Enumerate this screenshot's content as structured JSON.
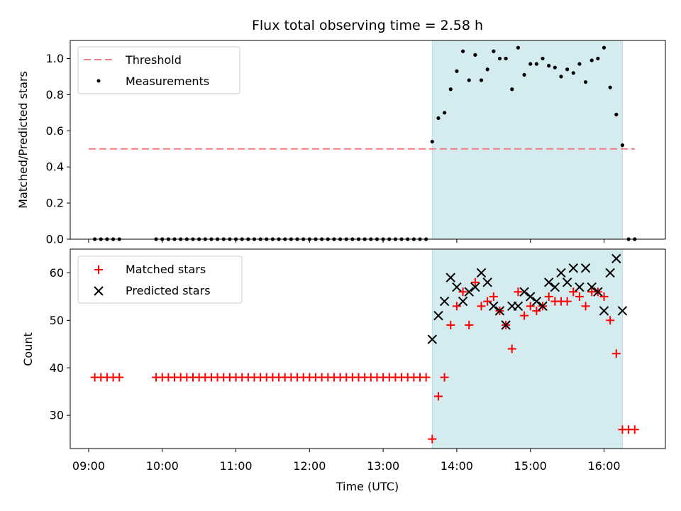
{
  "chart_data": [
    {
      "type": "scatter",
      "title": "Flux total observing time = 2.58 h",
      "xlabel": "",
      "ylabel": "Matched/Predicted stars",
      "ylim": [
        0,
        1.1
      ],
      "yticks": [
        "0.0",
        "0.2",
        "0.4",
        "0.6",
        "0.8",
        "1.0"
      ],
      "legend_position": "top-left",
      "highlight_span": {
        "from": "13:40",
        "to": "16:15",
        "color": "#d4ebf0"
      },
      "threshold": {
        "name": "Threshold",
        "value": 0.5,
        "from": "09:00",
        "to": "16:25",
        "color": "#f08080"
      },
      "series": [
        {
          "name": "Measurements",
          "color": "#000000",
          "marker": "dot",
          "points": [
            [
              "09:05",
              0
            ],
            [
              "09:10",
              0
            ],
            [
              "09:15",
              0
            ],
            [
              "09:20",
              0
            ],
            [
              "09:25",
              0
            ],
            [
              "09:55",
              0
            ],
            [
              "10:00",
              0
            ],
            [
              "10:05",
              0
            ],
            [
              "10:10",
              0
            ],
            [
              "10:15",
              0
            ],
            [
              "10:20",
              0
            ],
            [
              "10:25",
              0
            ],
            [
              "10:30",
              0
            ],
            [
              "10:35",
              0
            ],
            [
              "10:40",
              0
            ],
            [
              "10:45",
              0
            ],
            [
              "10:50",
              0
            ],
            [
              "10:55",
              0
            ],
            [
              "11:00",
              0
            ],
            [
              "11:05",
              0
            ],
            [
              "11:10",
              0
            ],
            [
              "11:15",
              0
            ],
            [
              "11:20",
              0
            ],
            [
              "11:25",
              0
            ],
            [
              "11:30",
              0
            ],
            [
              "11:35",
              0
            ],
            [
              "11:40",
              0
            ],
            [
              "11:45",
              0
            ],
            [
              "11:50",
              0
            ],
            [
              "11:55",
              0
            ],
            [
              "12:00",
              0
            ],
            [
              "12:05",
              0
            ],
            [
              "12:10",
              0
            ],
            [
              "12:15",
              0
            ],
            [
              "12:20",
              0
            ],
            [
              "12:25",
              0
            ],
            [
              "12:30",
              0
            ],
            [
              "12:35",
              0
            ],
            [
              "12:40",
              0
            ],
            [
              "12:45",
              0
            ],
            [
              "12:50",
              0
            ],
            [
              "12:55",
              0
            ],
            [
              "13:00",
              0
            ],
            [
              "13:05",
              0
            ],
            [
              "13:10",
              0
            ],
            [
              "13:15",
              0
            ],
            [
              "13:20",
              0
            ],
            [
              "13:25",
              0
            ],
            [
              "13:30",
              0
            ],
            [
              "13:35",
              0
            ],
            [
              "13:40",
              0.54
            ],
            [
              "13:45",
              0.67
            ],
            [
              "13:50",
              0.7
            ],
            [
              "13:55",
              0.83
            ],
            [
              "14:00",
              0.93
            ],
            [
              "14:05",
              1.04
            ],
            [
              "14:10",
              0.88
            ],
            [
              "14:15",
              1.02
            ],
            [
              "14:20",
              0.88
            ],
            [
              "14:25",
              0.94
            ],
            [
              "14:30",
              1.04
            ],
            [
              "14:35",
              1.0
            ],
            [
              "14:40",
              1.0
            ],
            [
              "14:45",
              0.83
            ],
            [
              "14:50",
              1.06
            ],
            [
              "14:55",
              0.91
            ],
            [
              "15:00",
              0.97
            ],
            [
              "15:05",
              0.97
            ],
            [
              "15:10",
              1.0
            ],
            [
              "15:15",
              0.96
            ],
            [
              "15:20",
              0.95
            ],
            [
              "15:25",
              0.9
            ],
            [
              "15:30",
              0.94
            ],
            [
              "15:35",
              0.92
            ],
            [
              "15:40",
              0.97
            ],
            [
              "15:45",
              0.87
            ],
            [
              "15:50",
              0.99
            ],
            [
              "15:55",
              1.0
            ],
            [
              "16:00",
              1.06
            ],
            [
              "16:05",
              0.84
            ],
            [
              "16:10",
              0.69
            ],
            [
              "16:15",
              0.52
            ],
            [
              "16:20",
              0
            ],
            [
              "16:25",
              0
            ]
          ]
        }
      ]
    },
    {
      "type": "scatter",
      "title": "",
      "xlabel": "Time (UTC)",
      "ylabel": "Count",
      "ylim": [
        23,
        65
      ],
      "yticks": [
        "30",
        "40",
        "50",
        "60"
      ],
      "xticks": [
        "09:00",
        "10:00",
        "11:00",
        "12:00",
        "13:00",
        "14:00",
        "15:00",
        "16:00"
      ],
      "xlim": [
        "08:45",
        "16:50"
      ],
      "legend_position": "top-left",
      "highlight_span": {
        "from": "13:40",
        "to": "16:15",
        "color": "#d4ebf0"
      },
      "series": [
        {
          "name": "Matched stars",
          "color": "#ff0000",
          "marker": "plus",
          "points": [
            [
              "09:05",
              38
            ],
            [
              "09:10",
              38
            ],
            [
              "09:15",
              38
            ],
            [
              "09:20",
              38
            ],
            [
              "09:25",
              38
            ],
            [
              "09:55",
              38
            ],
            [
              "10:00",
              38
            ],
            [
              "10:05",
              38
            ],
            [
              "10:10",
              38
            ],
            [
              "10:15",
              38
            ],
            [
              "10:20",
              38
            ],
            [
              "10:25",
              38
            ],
            [
              "10:30",
              38
            ],
            [
              "10:35",
              38
            ],
            [
              "10:40",
              38
            ],
            [
              "10:45",
              38
            ],
            [
              "10:50",
              38
            ],
            [
              "10:55",
              38
            ],
            [
              "11:00",
              38
            ],
            [
              "11:05",
              38
            ],
            [
              "11:10",
              38
            ],
            [
              "11:15",
              38
            ],
            [
              "11:20",
              38
            ],
            [
              "11:25",
              38
            ],
            [
              "11:30",
              38
            ],
            [
              "11:35",
              38
            ],
            [
              "11:40",
              38
            ],
            [
              "11:45",
              38
            ],
            [
              "11:50",
              38
            ],
            [
              "11:55",
              38
            ],
            [
              "12:00",
              38
            ],
            [
              "12:05",
              38
            ],
            [
              "12:10",
              38
            ],
            [
              "12:15",
              38
            ],
            [
              "12:20",
              38
            ],
            [
              "12:25",
              38
            ],
            [
              "12:30",
              38
            ],
            [
              "12:35",
              38
            ],
            [
              "12:40",
              38
            ],
            [
              "12:45",
              38
            ],
            [
              "12:50",
              38
            ],
            [
              "12:55",
              38
            ],
            [
              "13:00",
              38
            ],
            [
              "13:05",
              38
            ],
            [
              "13:10",
              38
            ],
            [
              "13:15",
              38
            ],
            [
              "13:20",
              38
            ],
            [
              "13:25",
              38
            ],
            [
              "13:30",
              38
            ],
            [
              "13:35",
              38
            ],
            [
              "13:40",
              25
            ],
            [
              "13:45",
              34
            ],
            [
              "13:50",
              38
            ],
            [
              "13:55",
              49
            ],
            [
              "14:00",
              53
            ],
            [
              "14:05",
              56
            ],
            [
              "14:10",
              49
            ],
            [
              "14:15",
              58
            ],
            [
              "14:20",
              53
            ],
            [
              "14:25",
              54
            ],
            [
              "14:30",
              55
            ],
            [
              "14:35",
              52
            ],
            [
              "14:40",
              49
            ],
            [
              "14:45",
              44
            ],
            [
              "14:50",
              56
            ],
            [
              "14:55",
              51
            ],
            [
              "15:00",
              53
            ],
            [
              "15:05",
              52
            ],
            [
              "15:10",
              53
            ],
            [
              "15:15",
              55
            ],
            [
              "15:20",
              54
            ],
            [
              "15:25",
              54
            ],
            [
              "15:30",
              54
            ],
            [
              "15:35",
              56
            ],
            [
              "15:40",
              55
            ],
            [
              "15:45",
              53
            ],
            [
              "15:50",
              56
            ],
            [
              "15:55",
              56
            ],
            [
              "16:00",
              55
            ],
            [
              "16:05",
              50
            ],
            [
              "16:10",
              43
            ],
            [
              "16:15",
              27
            ],
            [
              "16:20",
              27
            ],
            [
              "16:25",
              27
            ]
          ]
        },
        {
          "name": "Predicted stars",
          "color": "#000000",
          "marker": "cross",
          "points": [
            [
              "13:40",
              46
            ],
            [
              "13:45",
              51
            ],
            [
              "13:50",
              54
            ],
            [
              "13:55",
              59
            ],
            [
              "14:00",
              57
            ],
            [
              "14:05",
              54
            ],
            [
              "14:10",
              56
            ],
            [
              "14:15",
              57
            ],
            [
              "14:20",
              60
            ],
            [
              "14:25",
              58
            ],
            [
              "14:30",
              53
            ],
            [
              "14:35",
              52
            ],
            [
              "14:40",
              49
            ],
            [
              "14:45",
              53
            ],
            [
              "14:50",
              53
            ],
            [
              "14:55",
              56
            ],
            [
              "15:00",
              55
            ],
            [
              "15:05",
              54
            ],
            [
              "15:10",
              53
            ],
            [
              "15:15",
              58
            ],
            [
              "15:20",
              57
            ],
            [
              "15:25",
              60
            ],
            [
              "15:30",
              58
            ],
            [
              "15:35",
              61
            ],
            [
              "15:40",
              57
            ],
            [
              "15:45",
              61
            ],
            [
              "15:50",
              57
            ],
            [
              "15:55",
              56
            ],
            [
              "16:00",
              52
            ],
            [
              "16:05",
              60
            ],
            [
              "16:10",
              63
            ],
            [
              "16:15",
              52
            ]
          ]
        }
      ]
    }
  ]
}
